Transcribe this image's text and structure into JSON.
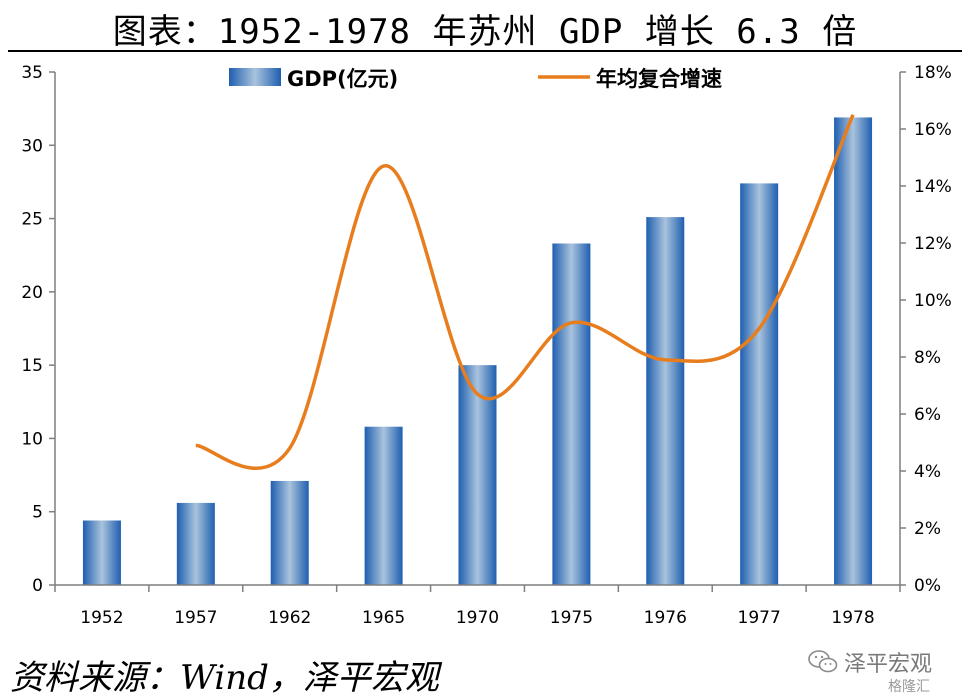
{
  "title": "图表：1952-1978 年苏州 GDP 增长 6.3 倍",
  "source": "资料来源：Wind，泽平宏观",
  "watermark": {
    "text": "泽平宏观",
    "sub": "格隆汇",
    "icon": "wechat-icon"
  },
  "colors": {
    "bar": "#2e6db4",
    "line": "#e87d1e"
  },
  "chart_data": {
    "type": "bar",
    "categories": [
      "1952",
      "1957",
      "1962",
      "1965",
      "1970",
      "1975",
      "1976",
      "1977",
      "1978"
    ],
    "series": [
      {
        "name": "GDP(亿元)",
        "type": "bar",
        "axis": "left",
        "values": [
          4.4,
          5.6,
          7.1,
          10.8,
          15.0,
          23.3,
          25.1,
          27.4,
          31.9
        ]
      },
      {
        "name": "年均复合增速",
        "type": "line",
        "axis": "right",
        "values": [
          null,
          4.9,
          4.8,
          14.7,
          6.7,
          9.2,
          7.9,
          9.0,
          16.5
        ]
      }
    ],
    "yleft": {
      "min": 0,
      "max": 35,
      "ticks": [
        "0",
        "5",
        "10",
        "15",
        "20",
        "25",
        "30",
        "35"
      ]
    },
    "yright": {
      "min": 0,
      "max": 18,
      "ticks": [
        "0%",
        "2%",
        "4%",
        "6%",
        "8%",
        "10%",
        "12%",
        "14%",
        "16%",
        "18%"
      ]
    },
    "grid": false,
    "legend": "top-center"
  }
}
